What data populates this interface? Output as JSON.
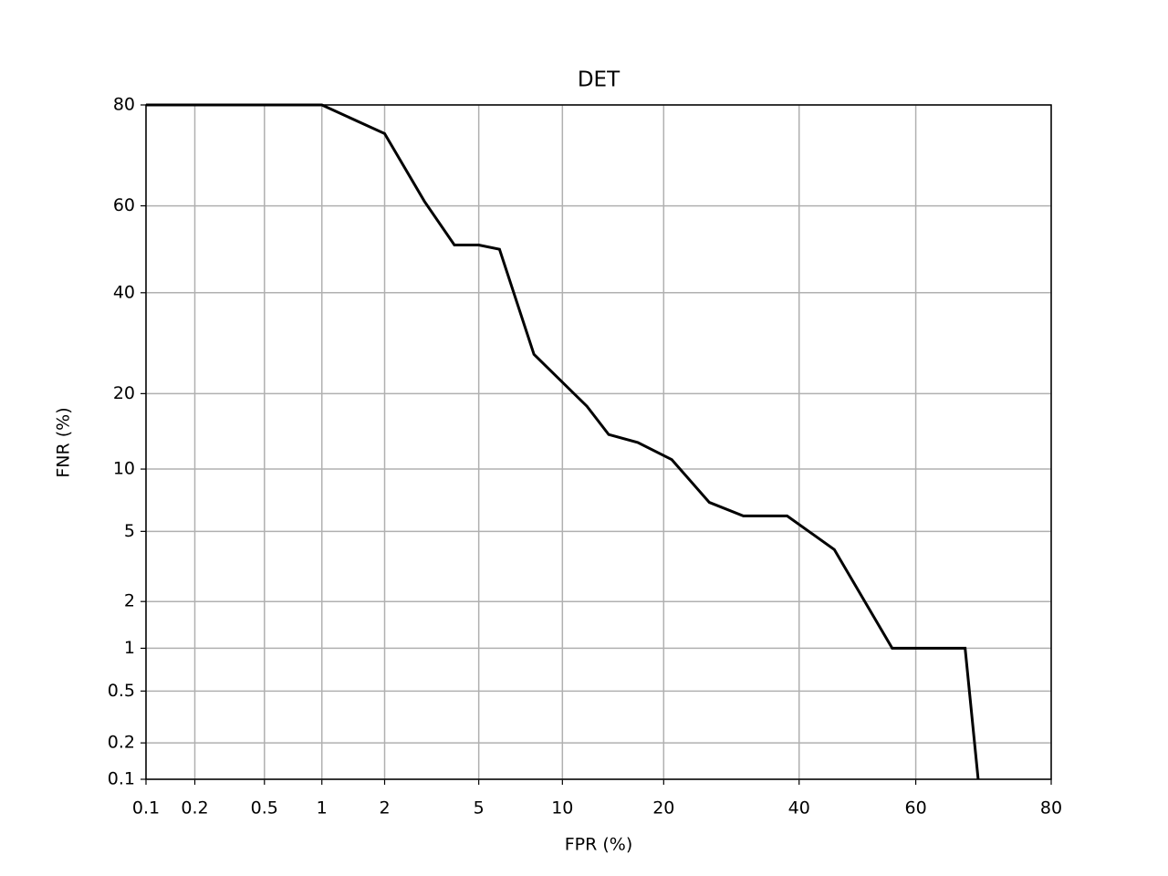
{
  "chart_data": {
    "type": "line",
    "title": "DET",
    "x_label": "FPR (%)",
    "y_label": "FNR (%)",
    "x_scale": "probit",
    "y_scale": "probit",
    "grid": true,
    "xlim": [
      0.1,
      80
    ],
    "ylim": [
      0.1,
      80
    ],
    "xticks": [
      0.1,
      0.2,
      0.5,
      1,
      2,
      5,
      10,
      20,
      40,
      60,
      80
    ],
    "yticks": [
      0.1,
      0.2,
      0.5,
      1,
      2,
      5,
      10,
      20,
      40,
      60,
      80
    ],
    "series": [
      {
        "color": "#000000",
        "x": [
          0.1,
          1,
          2,
          3,
          4,
          5,
          6,
          8,
          12,
          14,
          17,
          21,
          26,
          31,
          38,
          46,
          56,
          68,
          70
        ],
        "values": [
          80,
          80,
          75,
          61,
          51,
          51,
          50,
          27,
          18,
          14,
          13,
          11,
          7,
          6,
          6,
          4,
          1,
          1,
          0.1
        ]
      }
    ]
  }
}
